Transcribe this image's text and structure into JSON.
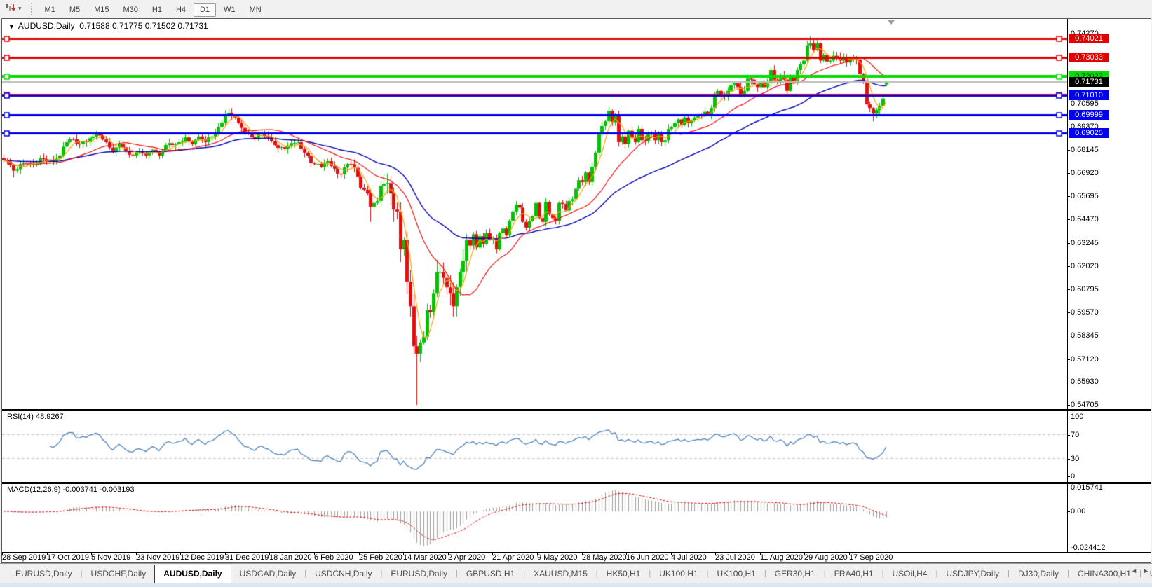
{
  "toolbar": {
    "timeframes": [
      "M1",
      "M5",
      "M15",
      "M30",
      "H1",
      "H4",
      "D1",
      "W1",
      "MN"
    ],
    "active_timeframe": "D1"
  },
  "chart_header": {
    "symbol": "AUDUSD,Daily",
    "ohlc": "0.71588 0.71775 0.71502 0.71731",
    "open": "0.71588",
    "high": "0.71775",
    "low": "0.71502",
    "close": "0.71731"
  },
  "price_axis": {
    "ticks": [
      "0.74270",
      "0.70595",
      "0.69370",
      "0.68145",
      "0.66920",
      "0.65695",
      "0.64470",
      "0.63245",
      "0.62020",
      "0.60795",
      "0.59570",
      "0.58345",
      "0.57120",
      "0.55930",
      "0.54705"
    ]
  },
  "badges": [
    {
      "label": "0.74021",
      "price": 0.74021,
      "bg": "#e00000",
      "fg": "#ffffff"
    },
    {
      "label": "0.73033",
      "price": 0.73033,
      "bg": "#e00000",
      "fg": "#ffffff"
    },
    {
      "label": "0.72022",
      "price": 0.72022,
      "bg": "#00dd00",
      "fg": "#000000"
    },
    {
      "label": "0.71731",
      "price": 0.71731,
      "bg": "#000000",
      "fg": "#ffffff"
    },
    {
      "label": "0.71010",
      "price": 0.7101,
      "bg": "#0000f0",
      "fg": "#ffffff"
    },
    {
      "label": "0.69999",
      "price": 0.69999,
      "bg": "#0000f0",
      "fg": "#ffffff"
    },
    {
      "label": "0.69025",
      "price": 0.69025,
      "bg": "#0000f0",
      "fg": "#ffffff"
    }
  ],
  "rsi": {
    "label": "RSI(14) 48.9267",
    "period": 14,
    "value": 48.9267,
    "axis_ticks": [
      {
        "label": "100",
        "v": 100
      },
      {
        "label": "70",
        "v": 70
      },
      {
        "label": "30",
        "v": 30
      },
      {
        "label": "0",
        "v": 0
      }
    ],
    "levels": [
      70,
      30
    ],
    "color": "#4f81bd"
  },
  "macd": {
    "label": "MACD(12,26,9) -0.003741 -0.003193",
    "fast": 12,
    "slow": 26,
    "signal_period": 9,
    "macd_value": -0.003741,
    "signal_value": -0.003193,
    "axis_ticks": [
      {
        "label": "0.015741",
        "v": 0.015741
      },
      {
        "label": "0.00",
        "v": 0
      },
      {
        "label": "-0.024412",
        "v": -0.024412
      }
    ]
  },
  "date_axis": [
    "28 Sep 2019",
    "17 Oct 2019",
    "5 Nov 2019",
    "23 Nov 2019",
    "12 Dec 2019",
    "31 Dec 2019",
    "18 Jan 2020",
    "6 Feb 2020",
    "25 Feb 2020",
    "14 Mar 2020",
    "2 Apr 2020",
    "21 Apr 2020",
    "9 May 2020",
    "28 May 2020",
    "16 Jun 2020",
    "4 Jul 2020",
    "23 Jul 2020",
    "11 Aug 2020",
    "29 Aug 2020",
    "17 Sep 2020"
  ],
  "tabs": {
    "items": [
      {
        "label": "EURUSD,Daily",
        "active": false
      },
      {
        "label": "USDCHF,Daily",
        "active": false
      },
      {
        "label": "AUDUSD,Daily",
        "active": true
      },
      {
        "label": "USDCAD,Daily",
        "active": false
      },
      {
        "label": "USDCNH,Daily",
        "active": false
      },
      {
        "label": "EURUSD,Daily",
        "active": false
      },
      {
        "label": "GBPUSD,H1",
        "active": false
      },
      {
        "label": "XAUUSD,M15",
        "active": false
      },
      {
        "label": "HK50,H1",
        "active": false
      },
      {
        "label": "UK100,H1",
        "active": false
      },
      {
        "label": "UK100,H1",
        "active": false
      },
      {
        "label": "GER30,H1",
        "active": false
      },
      {
        "label": "FRA40,H1",
        "active": false
      },
      {
        "label": "USOil,H4",
        "active": false
      },
      {
        "label": "USDJPY,Daily",
        "active": false
      },
      {
        "label": "DJ30,Daily",
        "active": false
      },
      {
        "label": "CHINA300,H1",
        "active": false
      },
      {
        "label": "USOil,H",
        "active": false
      }
    ],
    "scroll_left": "◄",
    "scroll_right": "►"
  },
  "chart_data": {
    "type": "candlestick",
    "symbol": "AUDUSD",
    "timeframe": "Daily",
    "title": "AUDUSD,Daily 0.71588 0.71775 0.71502 0.71731",
    "price_axis_top": 0.7427,
    "price_axis_bottom": 0.54705,
    "x_dates": [
      "28 Sep 2019",
      "17 Oct 2019",
      "5 Nov 2019",
      "23 Nov 2019",
      "12 Dec 2019",
      "31 Dec 2019",
      "18 Jan 2020",
      "6 Feb 2020",
      "25 Feb 2020",
      "14 Mar 2020",
      "2 Apr 2020",
      "21 Apr 2020",
      "9 May 2020",
      "28 May 2020",
      "16 Jun 2020",
      "4 Jul 2020",
      "23 Jul 2020",
      "11 Aug 2020",
      "29 Aug 2020",
      "17 Sep 2020"
    ],
    "candle_count": 268,
    "colors": {
      "up": "#00c200",
      "down": "#e01010",
      "ma_fast": "#ffa000",
      "ma_mid": "#ee1111",
      "ma_slow": "#0000b8",
      "rsi": "#4f81bd",
      "macd_hist": "#9e9e9e",
      "macd_signal": "#e00000",
      "level_dash": "#c8c8c8",
      "price_line": "#bbbbbb"
    },
    "close_anchors": [
      [
        0,
        0.676
      ],
      [
        2,
        0.6735
      ],
      [
        3,
        0.6705
      ],
      [
        6,
        0.6745
      ],
      [
        9,
        0.674
      ],
      [
        11,
        0.677
      ],
      [
        13,
        0.6755
      ],
      [
        15,
        0.6755
      ],
      [
        17,
        0.6785
      ],
      [
        19,
        0.6855
      ],
      [
        21,
        0.687
      ],
      [
        23,
        0.6845
      ],
      [
        25,
        0.6855
      ],
      [
        27,
        0.6885
      ],
      [
        29,
        0.689
      ],
      [
        31,
        0.6855
      ],
      [
        33,
        0.6805
      ],
      [
        35,
        0.6845
      ],
      [
        37,
        0.6805
      ],
      [
        39,
        0.6785
      ],
      [
        41,
        0.6805
      ],
      [
        43,
        0.6785
      ],
      [
        45,
        0.6815
      ],
      [
        47,
        0.6785
      ],
      [
        49,
        0.684
      ],
      [
        51,
        0.684
      ],
      [
        53,
        0.6855
      ],
      [
        55,
        0.688
      ],
      [
        57,
        0.6845
      ],
      [
        59,
        0.6885
      ],
      [
        61,
        0.6855
      ],
      [
        63,
        0.6885
      ],
      [
        65,
        0.6935
      ],
      [
        67,
        0.7
      ],
      [
        68,
        0.701
      ],
      [
        70,
        0.6985
      ],
      [
        72,
        0.693
      ],
      [
        74,
        0.69
      ],
      [
        76,
        0.687
      ],
      [
        78,
        0.6905
      ],
      [
        80,
        0.688
      ],
      [
        81,
        0.686
      ],
      [
        83,
        0.6825
      ],
      [
        85,
        0.682
      ],
      [
        87,
        0.685
      ],
      [
        89,
        0.6855
      ],
      [
        91,
        0.68
      ],
      [
        93,
        0.6745
      ],
      [
        94,
        0.674
      ],
      [
        96,
        0.6725
      ],
      [
        98,
        0.6755
      ],
      [
        100,
        0.6715
      ],
      [
        102,
        0.6685
      ],
      [
        104,
        0.674
      ],
      [
        106,
        0.672
      ],
      [
        108,
        0.6615
      ],
      [
        110,
        0.6585
      ],
      [
        111,
        0.6515
      ],
      [
        112,
        0.6535
      ],
      [
        113,
        0.6545
      ],
      [
        114,
        0.6625
      ],
      [
        115,
        0.6635
      ],
      [
        116,
        0.664
      ],
      [
        117,
        0.6585
      ],
      [
        118,
        0.65
      ],
      [
        119,
        0.649
      ],
      [
        120,
        0.629
      ],
      [
        121,
        0.634
      ],
      [
        122,
        0.612
      ],
      [
        123,
        0.599
      ],
      [
        124,
        0.578
      ],
      [
        125,
        0.574
      ],
      [
        126,
        0.58
      ],
      [
        127,
        0.583
      ],
      [
        128,
        0.597
      ],
      [
        129,
        0.596
      ],
      [
        130,
        0.606
      ],
      [
        131,
        0.617
      ],
      [
        132,
        0.617
      ],
      [
        133,
        0.614
      ],
      [
        134,
        0.609
      ],
      [
        135,
        0.606
      ],
      [
        136,
        0.599
      ],
      [
        137,
        0.609
      ],
      [
        138,
        0.617
      ],
      [
        139,
        0.623
      ],
      [
        140,
        0.634
      ],
      [
        141,
        0.631
      ],
      [
        142,
        0.637
      ],
      [
        143,
        0.63
      ],
      [
        144,
        0.636
      ],
      [
        145,
        0.632
      ],
      [
        146,
        0.6375
      ],
      [
        147,
        0.634
      ],
      [
        148,
        0.6345
      ],
      [
        149,
        0.629
      ],
      [
        150,
        0.6375
      ],
      [
        151,
        0.64
      ],
      [
        152,
        0.6365
      ],
      [
        153,
        0.644
      ],
      [
        154,
        0.649
      ],
      [
        155,
        0.6525
      ],
      [
        156,
        0.651
      ],
      [
        157,
        0.6435
      ],
      [
        158,
        0.6405
      ],
      [
        159,
        0.644
      ],
      [
        160,
        0.6465
      ],
      [
        161,
        0.6535
      ],
      [
        162,
        0.6455
      ],
      [
        163,
        0.6435
      ],
      [
        164,
        0.654
      ],
      [
        165,
        0.6475
      ],
      [
        166,
        0.6455
      ],
      [
        167,
        0.644
      ],
      [
        168,
        0.6535
      ],
      [
        169,
        0.653
      ],
      [
        170,
        0.6495
      ],
      [
        171,
        0.6545
      ],
      [
        172,
        0.6555
      ],
      [
        173,
        0.661
      ],
      [
        174,
        0.6655
      ],
      [
        175,
        0.6645
      ],
      [
        176,
        0.6695
      ],
      [
        177,
        0.6645
      ],
      [
        178,
        0.6725
      ],
      [
        179,
        0.68
      ],
      [
        180,
        0.6895
      ],
      [
        181,
        0.694
      ],
      [
        182,
        0.6965
      ],
      [
        183,
        0.702
      ],
      [
        184,
        0.696
      ],
      [
        185,
        0.7
      ],
      [
        186,
        0.6855
      ],
      [
        187,
        0.6885
      ],
      [
        188,
        0.6845
      ],
      [
        189,
        0.6915
      ],
      [
        190,
        0.688
      ],
      [
        191,
        0.6855
      ],
      [
        192,
        0.6925
      ],
      [
        193,
        0.6865
      ],
      [
        194,
        0.686
      ],
      [
        195,
        0.6895
      ],
      [
        196,
        0.6905
      ],
      [
        197,
        0.6865
      ],
      [
        198,
        0.6905
      ],
      [
        199,
        0.6855
      ],
      [
        200,
        0.6865
      ],
      [
        201,
        0.6925
      ],
      [
        202,
        0.6935
      ],
      [
        203,
        0.6955
      ],
      [
        204,
        0.6975
      ],
      [
        205,
        0.6945
      ],
      [
        206,
        0.6985
      ],
      [
        207,
        0.6955
      ],
      [
        208,
        0.697
      ],
      [
        209,
        0.6985
      ],
      [
        210,
        0.7
      ],
      [
        211,
        0.6995
      ],
      [
        212,
        0.7015
      ],
      [
        213,
        0.7
      ],
      [
        214,
        0.7035
      ],
      [
        215,
        0.711
      ],
      [
        216,
        0.7125
      ],
      [
        217,
        0.71
      ],
      [
        218,
        0.7095
      ],
      [
        219,
        0.7125
      ],
      [
        220,
        0.7155
      ],
      [
        221,
        0.7165
      ],
      [
        222,
        0.7145
      ],
      [
        223,
        0.71
      ],
      [
        224,
        0.7125
      ],
      [
        225,
        0.719
      ],
      [
        226,
        0.7185
      ],
      [
        227,
        0.716
      ],
      [
        228,
        0.7145
      ],
      [
        229,
        0.7175
      ],
      [
        230,
        0.7145
      ],
      [
        231,
        0.7165
      ],
      [
        232,
        0.7235
      ],
      [
        233,
        0.7185
      ],
      [
        234,
        0.7175
      ],
      [
        235,
        0.7205
      ],
      [
        236,
        0.7185
      ],
      [
        237,
        0.7125
      ],
      [
        238,
        0.7195
      ],
      [
        239,
        0.7165
      ],
      [
        240,
        0.7235
      ],
      [
        241,
        0.7265
      ],
      [
        242,
        0.7285
      ],
      [
        243,
        0.7365
      ],
      [
        244,
        0.7375
      ],
      [
        245,
        0.734
      ],
      [
        246,
        0.7375
      ],
      [
        247,
        0.7285
      ],
      [
        248,
        0.7315
      ],
      [
        249,
        0.728
      ],
      [
        250,
        0.7285
      ],
      [
        251,
        0.731
      ],
      [
        252,
        0.7305
      ],
      [
        253,
        0.7285
      ],
      [
        254,
        0.7305
      ],
      [
        255,
        0.7275
      ],
      [
        256,
        0.7295
      ],
      [
        257,
        0.7305
      ],
      [
        258,
        0.729
      ],
      [
        259,
        0.7215
      ],
      [
        260,
        0.7175
      ],
      [
        261,
        0.7055
      ],
      [
        262,
        0.7035
      ],
      [
        263,
        0.7005
      ],
      [
        264,
        0.7025
      ],
      [
        265,
        0.7045
      ],
      [
        266,
        0.7085
      ],
      [
        267,
        0.71731
      ]
    ],
    "special_candles": {
      "3": {
        "low": 0.667
      },
      "27": {
        "high": 0.69
      },
      "68": {
        "high": 0.7032
      },
      "111": {
        "low": 0.6435
      },
      "115": {
        "high": 0.6685
      },
      "125": {
        "low": 0.547
      },
      "183": {
        "high": 0.704
      },
      "244": {
        "high": 0.7414
      },
      "263": {
        "low": 0.6965
      },
      "267": {
        "open": 0.71588,
        "high": 0.71775,
        "low": 0.71502,
        "close": 0.71731
      }
    },
    "moving_averages": [
      {
        "name": "SMA-5",
        "period": 5,
        "kind": "sma",
        "color": "#ffa000"
      },
      {
        "name": "SMA-20",
        "period": 20,
        "kind": "sma",
        "color": "#ee1111"
      },
      {
        "name": "EMA-50",
        "period": 50,
        "kind": "ema",
        "color": "#0000b8"
      }
    ],
    "h_lines": [
      {
        "price": 0.74021,
        "color": "#e00000",
        "width": 3,
        "handles": true
      },
      {
        "price": 0.73033,
        "color": "#e00000",
        "width": 3,
        "handles": true
      },
      {
        "price": 0.72022,
        "color": "#00dd00",
        "width": 4,
        "handles": true
      },
      {
        "price": 0.71731,
        "color": "#bbbbbb",
        "width": 2,
        "handles": false
      },
      {
        "price": 0.7106,
        "color": "#e00000",
        "width": 2,
        "handles": true
      },
      {
        "price": 0.7101,
        "color": "#0000f0",
        "width": 3,
        "handles": true
      },
      {
        "price": 0.69999,
        "color": "#0000f0",
        "width": 3,
        "handles": true
      },
      {
        "price": 0.69025,
        "color": "#0000f0",
        "width": 3,
        "handles": true
      }
    ],
    "indicators": [
      {
        "type": "rsi",
        "period": 14,
        "current": 48.9267,
        "scale": [
          0,
          100
        ],
        "levels": [
          30,
          70
        ]
      },
      {
        "type": "macd",
        "fast": 12,
        "slow": 26,
        "signal": 9,
        "current_macd": -0.003741,
        "current_signal": -0.003193,
        "scale_top": 0.015741,
        "scale_bottom": -0.024412
      }
    ]
  }
}
